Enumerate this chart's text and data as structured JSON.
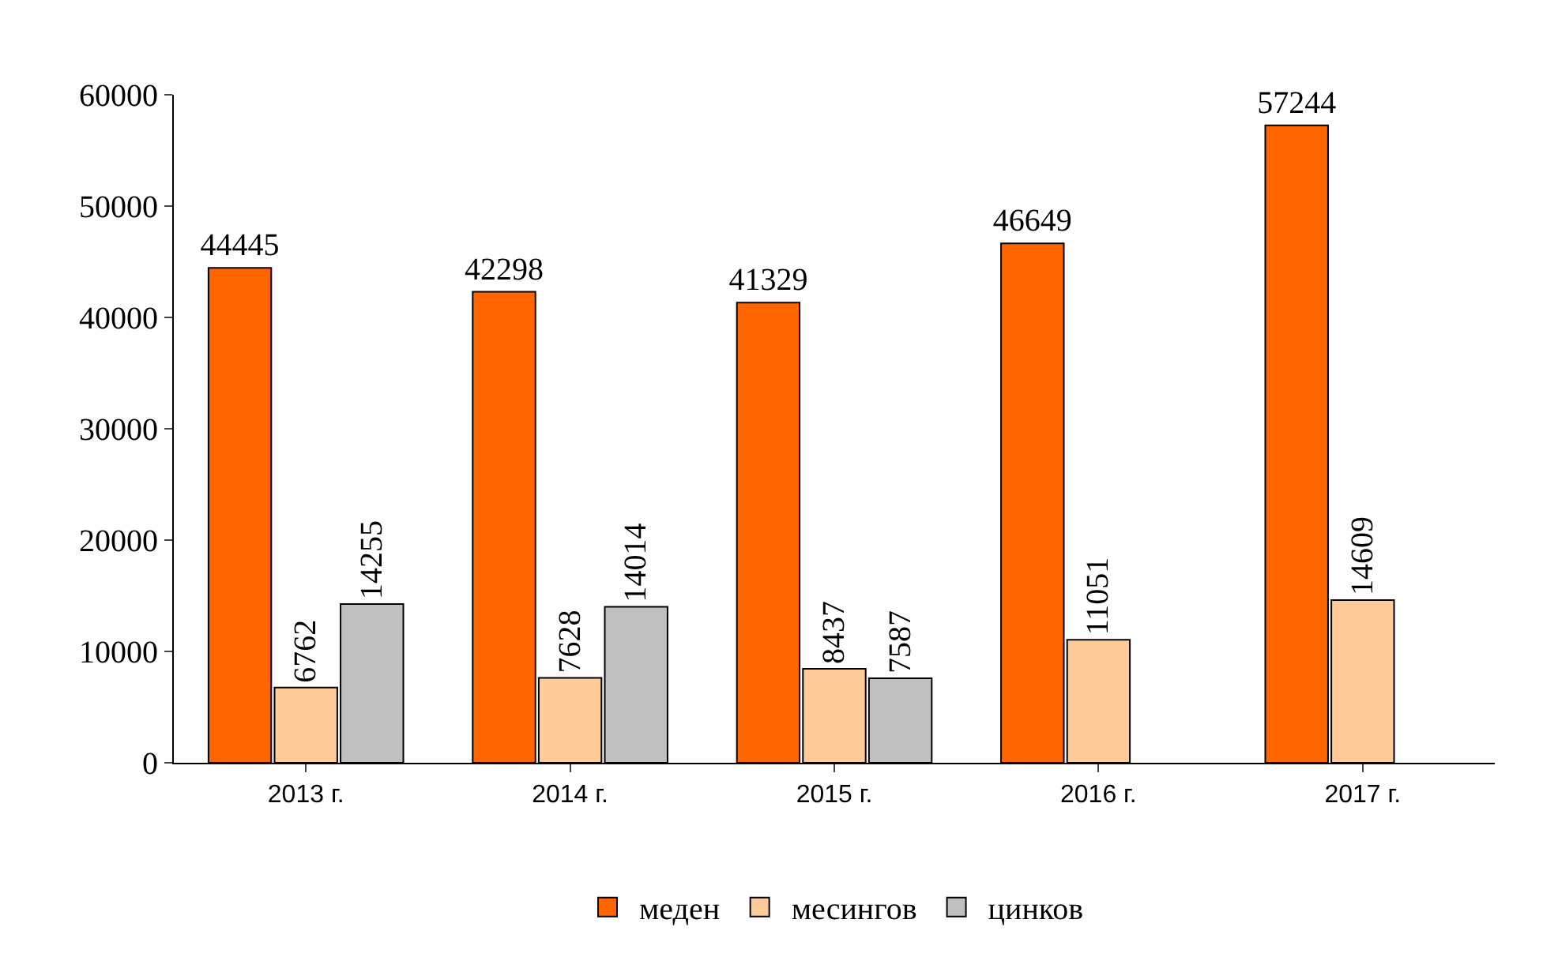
{
  "chart_data": {
    "type": "bar",
    "categories": [
      "2013 г.",
      "2014 г.",
      "2015 г.",
      "2016 г.",
      "2017 г."
    ],
    "series": [
      {
        "name": "меден",
        "color": "#ff6600",
        "values": [
          44445,
          42298,
          41329,
          46649,
          57244
        ]
      },
      {
        "name": "месингов",
        "color": "#ffcc99",
        "values": [
          6762,
          7628,
          8437,
          11051,
          14609
        ]
      },
      {
        "name": "цинков",
        "color": "#c0c0c0",
        "values": [
          14255,
          14014,
          7587,
          null,
          null
        ]
      }
    ],
    "ylim": [
      0,
      60000
    ],
    "yticks": [
      0,
      10000,
      20000,
      30000,
      40000,
      50000,
      60000
    ],
    "legend": "bottom",
    "data_labels": true
  }
}
